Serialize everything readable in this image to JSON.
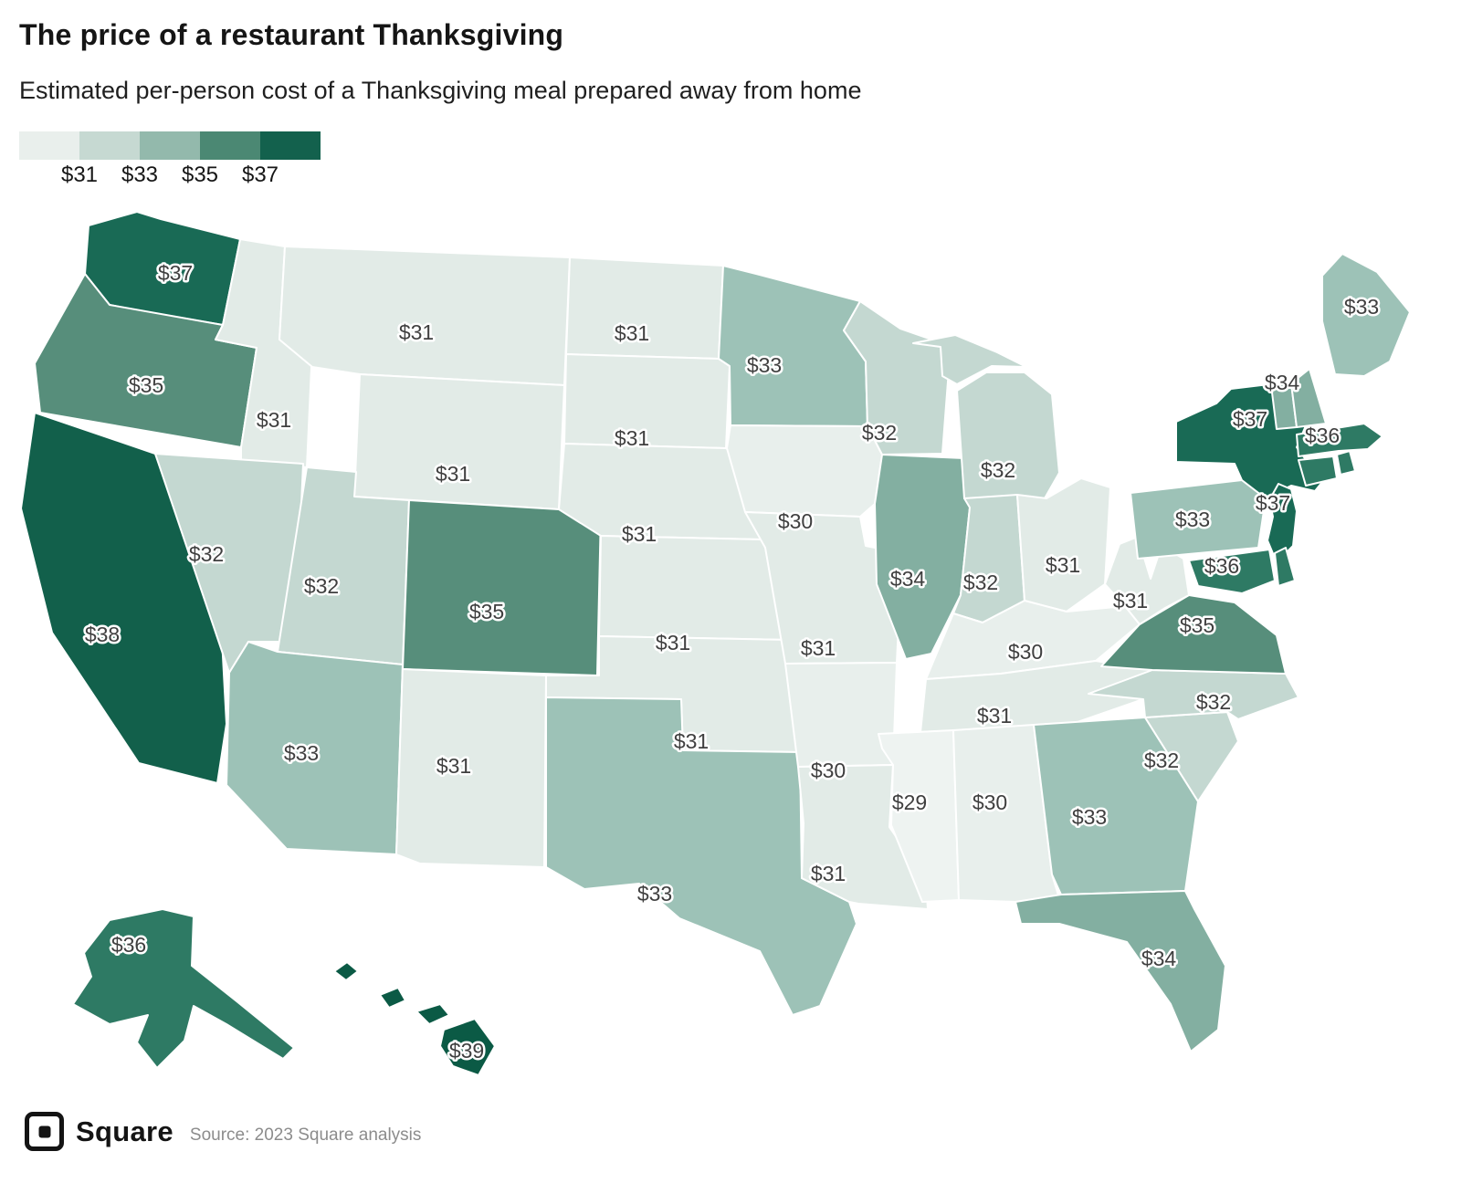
{
  "header": {
    "title": "The price of a restaurant Thanksgiving",
    "subtitle": "Estimated per-person cost of a Thanksgiving meal prepared away from home"
  },
  "legend": {
    "tick_labels": [
      "$31",
      "$33",
      "$35",
      "$37"
    ],
    "colors": [
      "#e9efec",
      "#c6d9d2",
      "#93b9ac",
      "#4b8873",
      "#13614d"
    ]
  },
  "footer": {
    "brand": "Square",
    "source": "Source: 2023 Square analysis"
  },
  "chart_data": {
    "type": "choropleth-map",
    "title": "The price of a restaurant Thanksgiving",
    "subtitle": "Estimated per-person cost of a Thanksgiving meal prepared away from home",
    "unit": "USD per person",
    "legend_breaks": [
      31,
      33,
      35,
      37
    ],
    "value_colors": {
      "29": "#eef3f1",
      "30": "#e8efec",
      "31": "#e2ebe7",
      "32": "#c4d8d1",
      "33": "#9dc2b7",
      "34": "#83afa1",
      "35": "#578e7b",
      "36": "#2e7a64",
      "37": "#196a55",
      "38": "#12604b",
      "39": "#0b5a45"
    },
    "states": [
      {
        "abbr": "WA",
        "name": "Washington",
        "value": 37,
        "label": "$37"
      },
      {
        "abbr": "OR",
        "name": "Oregon",
        "value": 35,
        "label": "$35"
      },
      {
        "abbr": "CA",
        "name": "California",
        "value": 38,
        "label": "$38"
      },
      {
        "abbr": "ID",
        "name": "Idaho",
        "value": 31,
        "label": "$31"
      },
      {
        "abbr": "NV",
        "name": "Nevada",
        "value": 32,
        "label": "$32"
      },
      {
        "abbr": "MT",
        "name": "Montana",
        "value": 31,
        "label": "$31"
      },
      {
        "abbr": "WY",
        "name": "Wyoming",
        "value": 31,
        "label": "$31"
      },
      {
        "abbr": "UT",
        "name": "Utah",
        "value": 32,
        "label": "$32"
      },
      {
        "abbr": "CO",
        "name": "Colorado",
        "value": 35,
        "label": "$35"
      },
      {
        "abbr": "AZ",
        "name": "Arizona",
        "value": 33,
        "label": "$33"
      },
      {
        "abbr": "NM",
        "name": "New Mexico",
        "value": 31,
        "label": "$31"
      },
      {
        "abbr": "ND",
        "name": "North Dakota",
        "value": 31,
        "label": "$31"
      },
      {
        "abbr": "SD",
        "name": "South Dakota",
        "value": 31,
        "label": "$31"
      },
      {
        "abbr": "NE",
        "name": "Nebraska",
        "value": 31,
        "label": "$31"
      },
      {
        "abbr": "KS",
        "name": "Kansas",
        "value": 31,
        "label": "$31"
      },
      {
        "abbr": "OK",
        "name": "Oklahoma",
        "value": 31,
        "label": "$31"
      },
      {
        "abbr": "TX",
        "name": "Texas",
        "value": 33,
        "label": "$33"
      },
      {
        "abbr": "MN",
        "name": "Minnesota",
        "value": 33,
        "label": "$33"
      },
      {
        "abbr": "IA",
        "name": "Iowa",
        "value": 30,
        "label": "$30"
      },
      {
        "abbr": "MO",
        "name": "Missouri",
        "value": 31,
        "label": "$31"
      },
      {
        "abbr": "AR",
        "name": "Arkansas",
        "value": 30,
        "label": "$30"
      },
      {
        "abbr": "LA",
        "name": "Louisiana",
        "value": 31,
        "label": "$31"
      },
      {
        "abbr": "WI",
        "name": "Wisconsin",
        "value": 32,
        "label": "$32"
      },
      {
        "abbr": "IL",
        "name": "Illinois",
        "value": 34,
        "label": "$34"
      },
      {
        "abbr": "MI",
        "name": "Michigan",
        "value": 32,
        "label": "$32"
      },
      {
        "abbr": "IN",
        "name": "Indiana",
        "value": 32,
        "label": "$32"
      },
      {
        "abbr": "OH",
        "name": "Ohio",
        "value": 31,
        "label": "$31"
      },
      {
        "abbr": "KY",
        "name": "Kentucky",
        "value": 30,
        "label": "$30"
      },
      {
        "abbr": "TN",
        "name": "Tennessee",
        "value": 31,
        "label": "$31"
      },
      {
        "abbr": "MS",
        "name": "Mississippi",
        "value": 29,
        "label": "$29"
      },
      {
        "abbr": "AL",
        "name": "Alabama",
        "value": 30,
        "label": "$30"
      },
      {
        "abbr": "GA",
        "name": "Georgia",
        "value": 33,
        "label": "$33"
      },
      {
        "abbr": "FL",
        "name": "Florida",
        "value": 34,
        "label": "$34"
      },
      {
        "abbr": "SC",
        "name": "South Carolina",
        "value": 32,
        "label": "$32"
      },
      {
        "abbr": "NC",
        "name": "North Carolina",
        "value": 32,
        "label": "$32"
      },
      {
        "abbr": "VA",
        "name": "Virginia",
        "value": 35,
        "label": "$35"
      },
      {
        "abbr": "WV",
        "name": "West Virginia",
        "value": 31,
        "label": "$31"
      },
      {
        "abbr": "PA",
        "name": "Pennsylvania",
        "value": 33,
        "label": "$33"
      },
      {
        "abbr": "NY",
        "name": "New York",
        "value": 37,
        "label": "$37"
      },
      {
        "abbr": "NJ",
        "name": "New Jersey",
        "value": 37,
        "label": "$37"
      },
      {
        "abbr": "MD",
        "name": "Maryland",
        "value": 36,
        "label": "$36"
      },
      {
        "abbr": "DE",
        "name": "Delaware",
        "value": 36,
        "label": "$36",
        "show_label": false
      },
      {
        "abbr": "VT",
        "name": "Vermont",
        "value": 34,
        "label": "$34"
      },
      {
        "abbr": "NH",
        "name": "New Hampshire",
        "value": 34,
        "label": "$34",
        "show_label": false
      },
      {
        "abbr": "MA",
        "name": "Massachusetts",
        "value": 36,
        "label": "$36"
      },
      {
        "abbr": "CT",
        "name": "Connecticut",
        "value": 36,
        "label": "$36",
        "show_label": false
      },
      {
        "abbr": "RI",
        "name": "Rhode Island",
        "value": 36,
        "label": "$36",
        "show_label": false
      },
      {
        "abbr": "ME",
        "name": "Maine",
        "value": 33,
        "label": "$33"
      },
      {
        "abbr": "AK",
        "name": "Alaska",
        "value": 36,
        "label": "$36"
      },
      {
        "abbr": "HI",
        "name": "Hawaii",
        "value": 39,
        "label": "$39"
      }
    ]
  }
}
